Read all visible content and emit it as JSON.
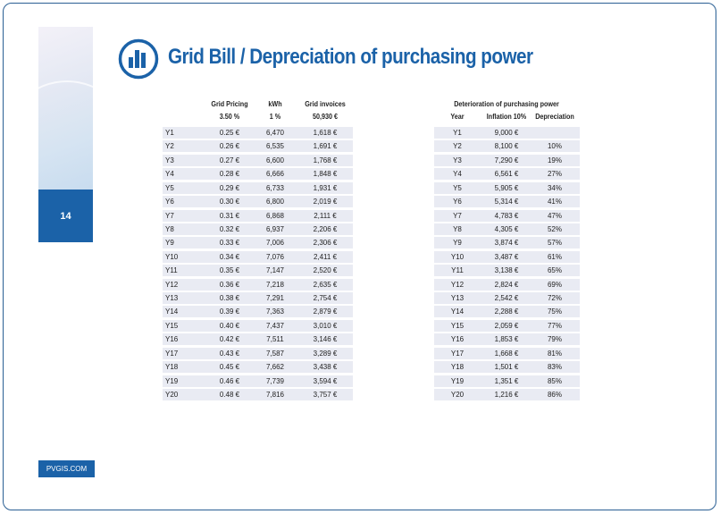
{
  "page": {
    "title": "Grid Bill / Depreciation of purchasing power",
    "page_number": "14",
    "site": "PVGIS.COM",
    "accent": "#1b62a8",
    "icon": "bar-chart-circle-icon"
  },
  "left_table": {
    "headers": [
      "Grid Pricing",
      "kWh",
      "Grid invoices"
    ],
    "subheaders": [
      "3.50 %",
      "1 %",
      "50,930 €"
    ],
    "rows": [
      [
        "Y1",
        "0.25 €",
        "6,470",
        "1,618 €"
      ],
      [
        "Y2",
        "0.26 €",
        "6,535",
        "1,691 €"
      ],
      [
        "Y3",
        "0.27 €",
        "6,600",
        "1,768 €"
      ],
      [
        "Y4",
        "0.28 €",
        "6,666",
        "1,848 €"
      ],
      [
        "Y5",
        "0.29 €",
        "6,733",
        "1,931 €"
      ],
      [
        "Y6",
        "0.30 €",
        "6,800",
        "2,019 €"
      ],
      [
        "Y7",
        "0.31 €",
        "6,868",
        "2,111 €"
      ],
      [
        "Y8",
        "0.32 €",
        "6,937",
        "2,206 €"
      ],
      [
        "Y9",
        "0.33 €",
        "7,006",
        "2,306 €"
      ],
      [
        "Y10",
        "0.34 €",
        "7,076",
        "2,411 €"
      ],
      [
        "Y11",
        "0.35 €",
        "7,147",
        "2,520 €"
      ],
      [
        "Y12",
        "0.36 €",
        "7,218",
        "2,635 €"
      ],
      [
        "Y13",
        "0.38 €",
        "7,291",
        "2,754 €"
      ],
      [
        "Y14",
        "0.39 €",
        "7,363",
        "2,879 €"
      ],
      [
        "Y15",
        "0.40 €",
        "7,437",
        "3,010 €"
      ],
      [
        "Y16",
        "0.42 €",
        "7,511",
        "3,146 €"
      ],
      [
        "Y17",
        "0.43 €",
        "7,587",
        "3,289 €"
      ],
      [
        "Y18",
        "0.45 €",
        "7,662",
        "3,438 €"
      ],
      [
        "Y19",
        "0.46 €",
        "7,739",
        "3,594 €"
      ],
      [
        "Y20",
        "0.48 €",
        "7,816",
        "3,757 €"
      ]
    ]
  },
  "right_table": {
    "title": "Deterioration of purchasing power",
    "headers": [
      "Year",
      "Inflation 10%",
      "Depreciation"
    ],
    "rows": [
      [
        "Y1",
        "9,000 €",
        ""
      ],
      [
        "Y2",
        "8,100 €",
        "10%"
      ],
      [
        "Y3",
        "7,290 €",
        "19%"
      ],
      [
        "Y4",
        "6,561 €",
        "27%"
      ],
      [
        "Y5",
        "5,905 €",
        "34%"
      ],
      [
        "Y6",
        "5,314 €",
        "41%"
      ],
      [
        "Y7",
        "4,783 €",
        "47%"
      ],
      [
        "Y8",
        "4,305 €",
        "52%"
      ],
      [
        "Y9",
        "3,874 €",
        "57%"
      ],
      [
        "Y10",
        "3,487 €",
        "61%"
      ],
      [
        "Y11",
        "3,138 €",
        "65%"
      ],
      [
        "Y12",
        "2,824 €",
        "69%"
      ],
      [
        "Y13",
        "2,542 €",
        "72%"
      ],
      [
        "Y14",
        "2,288 €",
        "75%"
      ],
      [
        "Y15",
        "2,059 €",
        "77%"
      ],
      [
        "Y16",
        "1,853 €",
        "79%"
      ],
      [
        "Y17",
        "1,668 €",
        "81%"
      ],
      [
        "Y18",
        "1,501 €",
        "83%"
      ],
      [
        "Y19",
        "1,351 €",
        "85%"
      ],
      [
        "Y20",
        "1,216 €",
        "86%"
      ]
    ]
  }
}
